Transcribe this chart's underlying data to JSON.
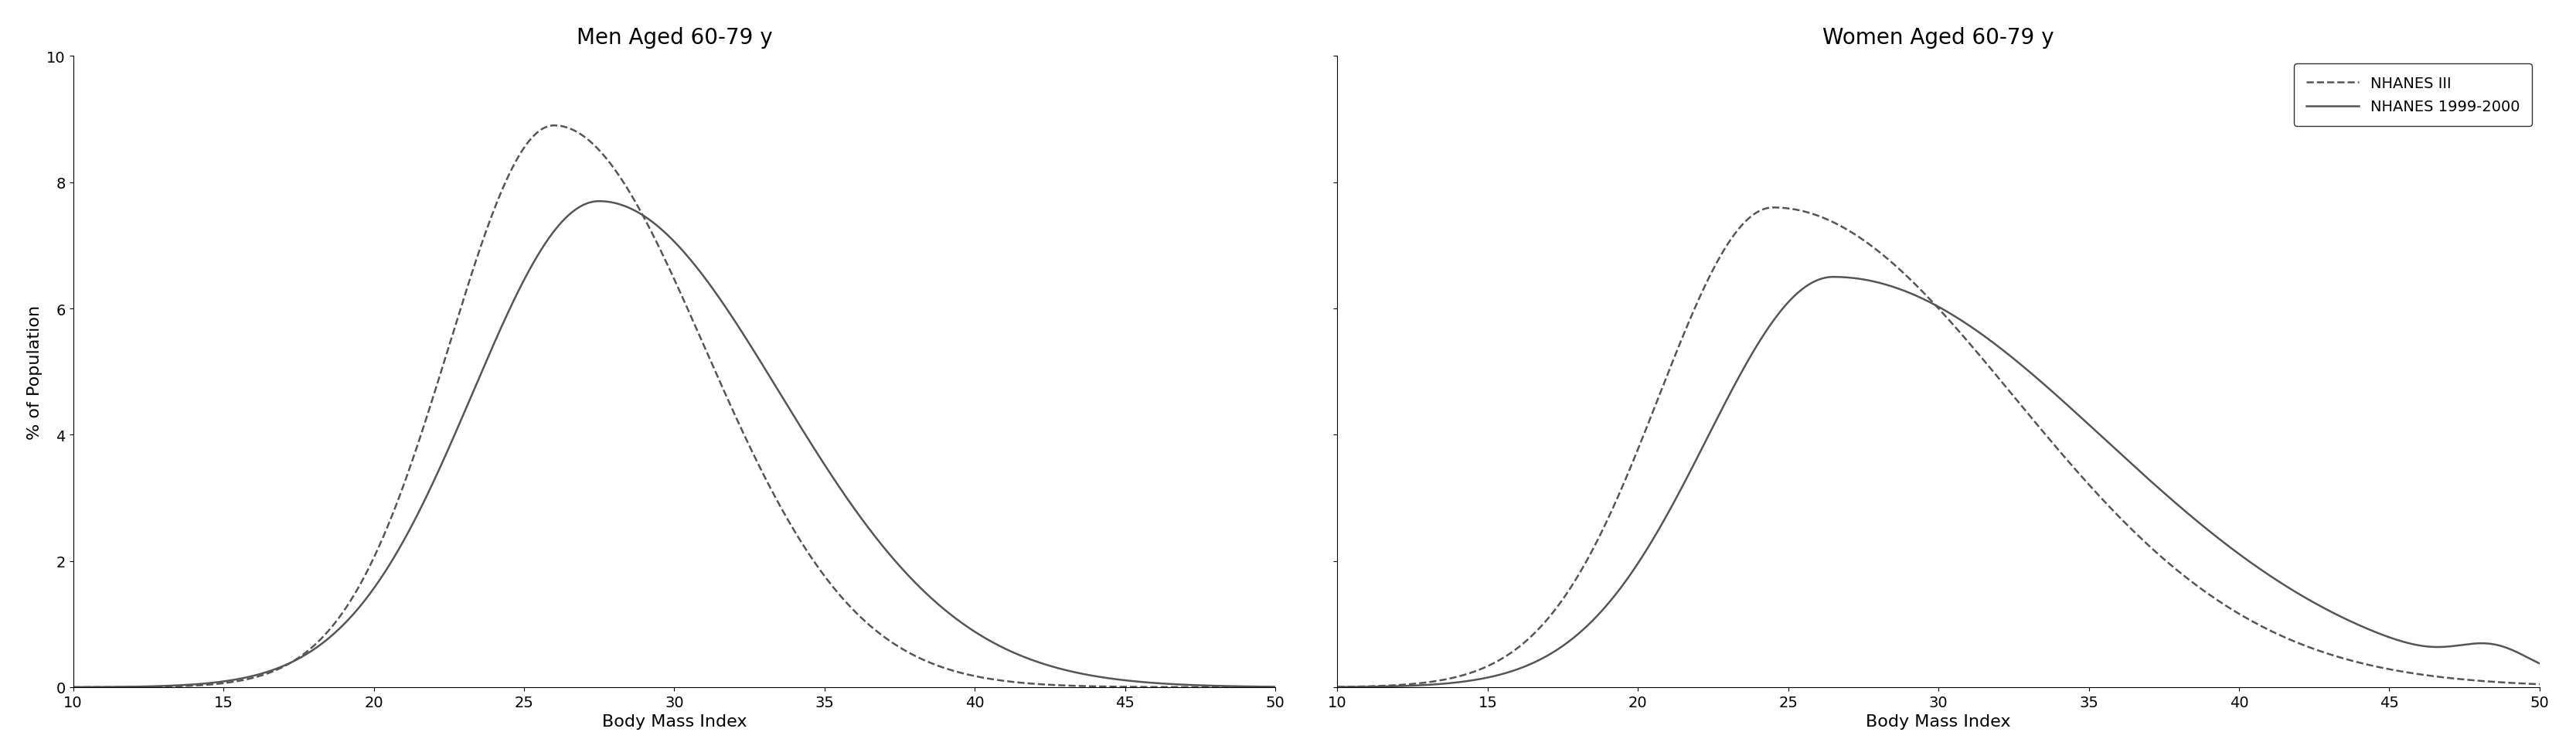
{
  "title_left": "Men Aged 60-79 y",
  "title_right": "Women Aged 60-79 y",
  "xlabel": "Body Mass Index",
  "ylabel": "% of Population",
  "xlim_left": [
    10,
    50
  ],
  "xlim_right": [
    10,
    50
  ],
  "ylim": [
    0,
    10
  ],
  "yticks": [
    0,
    2,
    4,
    6,
    8,
    10
  ],
  "xticks": [
    10,
    15,
    20,
    25,
    30,
    35,
    40,
    45,
    50
  ],
  "line_color": "#555555",
  "legend_labels": [
    "NHANES III",
    "NHANES 1999-2000"
  ],
  "background_color": "#ffffff"
}
